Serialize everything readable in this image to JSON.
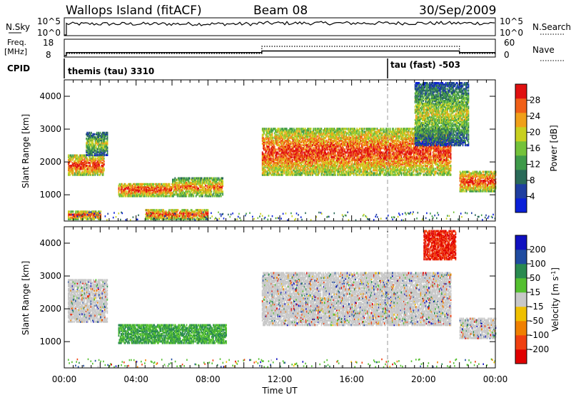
{
  "header": {
    "station": "Wallops Island (fitACF)",
    "beam": "Beam 08",
    "date": "30/Sep/2009"
  },
  "nsky_panel": {
    "left_label": "N.Sky",
    "left_ticks": [
      "10^5",
      "10^0"
    ],
    "right_label": "N.Search",
    "right_ticks": [
      "10^5",
      "10^0"
    ]
  },
  "freq_panel": {
    "left_label_line1": "Freq.",
    "left_label_line2": "[MHz]",
    "left_ticks": [
      "18",
      "8"
    ],
    "right_label": "Nave",
    "right_ticks": [
      "60",
      "0"
    ]
  },
  "cpid": {
    "label": "CPID",
    "modes": [
      {
        "name": "themis (tau) 3310",
        "start_hour": 0.0
      },
      {
        "name": "tau (fast) -503",
        "start_hour": 18.0
      }
    ]
  },
  "axes": {
    "x_ticks": [
      "00:00",
      "04:00",
      "08:00",
      "12:00",
      "16:00",
      "20:00",
      "00:00"
    ],
    "x_label": "Time UT",
    "y_label": "Slant Range [km]",
    "y_ticks": [
      "1000",
      "2000",
      "3000",
      "4000"
    ]
  },
  "power_colorbar": {
    "label": "Power [dB]",
    "ticks": [
      "4",
      "8",
      "12",
      "16",
      "20",
      "24",
      "28"
    ],
    "colors": [
      "#0a20d8",
      "#1f3ea0",
      "#2a6a58",
      "#3f9a4a",
      "#74c23a",
      "#c8d020",
      "#f0a01a",
      "#f06018",
      "#e01010"
    ]
  },
  "velocity_colorbar": {
    "label_main": "Velocity [m s",
    "label_sup": "-1",
    "label_end": "]",
    "ticks": [
      "200",
      "100",
      "50",
      "15",
      "-15",
      "-50",
      "-100",
      "-200"
    ],
    "colors": [
      "#1010c0",
      "#204ca0",
      "#2a8a50",
      "#55c030",
      "#c8c8c8",
      "#f0c000",
      "#f08000",
      "#f04010",
      "#e00000"
    ]
  },
  "chart_data": {
    "type": "heatmap",
    "x_range_hours": [
      0,
      24
    ],
    "y_range_km": [
      200,
      4500
    ],
    "scatter_regions_power": [
      {
        "t0": 0.2,
        "t1": 2.2,
        "r0": 1600,
        "r1": 2200,
        "level": "high"
      },
      {
        "t0": 1.2,
        "t1": 2.4,
        "r0": 2200,
        "r1": 2900,
        "level": "low"
      },
      {
        "t0": 3.0,
        "t1": 6.0,
        "r0": 950,
        "r1": 1350,
        "level": "high"
      },
      {
        "t0": 6.0,
        "t1": 8.8,
        "r0": 950,
        "r1": 1500,
        "level": "medium"
      },
      {
        "t0": 0.2,
        "t1": 2.0,
        "r0": 250,
        "r1": 500,
        "level": "high"
      },
      {
        "t0": 4.5,
        "t1": 8.0,
        "r0": 250,
        "r1": 550,
        "level": "high"
      },
      {
        "t0": 11.0,
        "t1": 21.5,
        "r0": 1600,
        "r1": 3000,
        "level": "high"
      },
      {
        "t0": 19.5,
        "t1": 22.5,
        "r0": 2500,
        "r1": 4400,
        "level": "low"
      },
      {
        "t0": 22.0,
        "t1": 24.0,
        "r0": 1100,
        "r1": 1700,
        "level": "high"
      }
    ],
    "scatter_regions_velocity": [
      {
        "t0": 0.2,
        "t1": 2.4,
        "r0": 1600,
        "r1": 2900,
        "v": "~0"
      },
      {
        "t0": 3.0,
        "t1": 9.0,
        "r0": 950,
        "r1": 1500,
        "v": "+15 to +100"
      },
      {
        "t0": 11.0,
        "t1": 21.5,
        "r0": 1500,
        "r1": 3100,
        "v": "~0"
      },
      {
        "t0": 20.0,
        "t1": 21.8,
        "r0": 3500,
        "r1": 4400,
        "v": "-100 to -200"
      },
      {
        "t0": 22.0,
        "t1": 24.0,
        "r0": 1100,
        "r1": 1700,
        "v": "~0"
      }
    ],
    "frequency_step": {
      "change_hour": 11.0,
      "before_mhz": 10.5,
      "after_mhz": 12.0,
      "end_hour": 22.0
    },
    "cpid_change_hour": 18.0
  }
}
